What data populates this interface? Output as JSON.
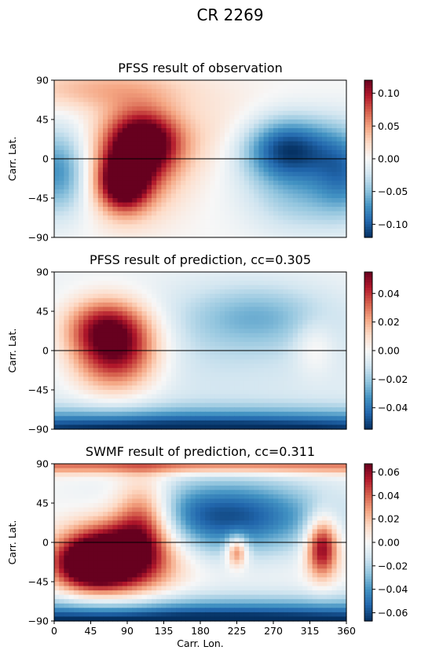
{
  "figure_title": "CR 2269",
  "x_axis_label": "Carr. Lon.",
  "colormap": {
    "name": "RdBu",
    "stops": [
      "#67001f",
      "#b2182b",
      "#d6604d",
      "#f4a582",
      "#fddbc7",
      "#f7f7f7",
      "#d1e5f0",
      "#92c5de",
      "#4393c3",
      "#2166ac",
      "#053061"
    ]
  },
  "chart_data": [
    {
      "type": "heatmap",
      "title": "PFSS result of observation",
      "xlabel": "",
      "ylabel": "Carr. Lat.",
      "xlim": [
        0,
        360
      ],
      "ylim": [
        -90,
        90
      ],
      "x_ticks": [],
      "y_ticks": [
        -90,
        -45,
        0,
        45,
        90
      ],
      "y_tick_labels": [
        "−90",
        "−45",
        "0",
        "45",
        "90"
      ],
      "zero_line": 0,
      "vmin": -0.12,
      "vmax": 0.12,
      "colorbar_ticks": [
        -0.1,
        -0.05,
        0.0,
        0.05,
        0.1
      ],
      "colorbar_tick_labels": [
        "−0.10",
        "−0.05",
        "0.00",
        "0.05",
        "0.10"
      ],
      "field_features": [
        {
          "lon": 110,
          "lat": 20,
          "value": 0.115,
          "width_lon": 30,
          "width_lat": 24
        },
        {
          "lon": 85,
          "lat": -28,
          "value": 0.125,
          "width_lon": 22,
          "width_lat": 22
        },
        {
          "lon": 100,
          "lat": -5,
          "value": 0.07,
          "width_lon": 40,
          "width_lat": 40
        },
        {
          "lon": 285,
          "lat": 12,
          "value": -0.12,
          "width_lon": 42,
          "width_lat": 26
        },
        {
          "lon": 5,
          "lat": -15,
          "value": -0.075,
          "width_lon": 28,
          "width_lat": 35
        },
        {
          "lon": 360,
          "lat": -15,
          "value": -0.07,
          "width_lon": 28,
          "width_lat": 35
        },
        {
          "lon": 300,
          "lat": -45,
          "value": -0.04,
          "width_lon": 45,
          "width_lat": 30
        },
        {
          "lon": 60,
          "lat": 80,
          "value": 0.04,
          "width_lon": 80,
          "width_lat": 18
        },
        {
          "lon": 220,
          "lat": 25,
          "value": 0.025,
          "width_lon": 55,
          "width_lat": 30
        }
      ]
    },
    {
      "type": "heatmap",
      "title": "PFSS result of prediction, cc=0.305",
      "xlabel": "",
      "ylabel": "Carr. Lat.",
      "xlim": [
        0,
        360
      ],
      "ylim": [
        -90,
        90
      ],
      "x_ticks": [],
      "y_ticks": [
        -90,
        -45,
        0,
        45,
        90
      ],
      "y_tick_labels": [
        "−90",
        "−45",
        "0",
        "45",
        "90"
      ],
      "zero_line": 0,
      "vmin": -0.055,
      "vmax": 0.055,
      "colorbar_ticks": [
        -0.04,
        -0.02,
        0.0,
        0.02,
        0.04
      ],
      "colorbar_tick_labels": [
        "−0.04",
        "−0.02",
        "0.00",
        "0.02",
        "0.04"
      ],
      "field_features": [
        {
          "lon": 75,
          "lat": 0,
          "value": 0.06,
          "width_lon": 38,
          "width_lat": 32
        },
        {
          "lon": 60,
          "lat": 30,
          "value": 0.03,
          "width_lon": 35,
          "width_lat": 22
        },
        {
          "lon": 320,
          "lat": 5,
          "value": 0.012,
          "width_lon": 18,
          "width_lat": 22
        },
        {
          "lon": 180,
          "lat": -95,
          "value": -0.06,
          "width_lon": 400,
          "width_lat": 18
        },
        {
          "lon": 250,
          "lat": 40,
          "value": -0.018,
          "width_lon": 60,
          "width_lat": 25
        },
        {
          "lon": 180,
          "lat": 0,
          "value": -0.012,
          "width_lon": 200,
          "width_lat": 60
        }
      ]
    },
    {
      "type": "heatmap",
      "title": "SWMF result of prediction, cc=0.311",
      "xlabel": "Carr. Lon.",
      "ylabel": "Carr. Lat.",
      "xlim": [
        0,
        360
      ],
      "ylim": [
        -90,
        90
      ],
      "x_ticks": [
        0,
        45,
        90,
        135,
        180,
        225,
        270,
        315,
        360
      ],
      "x_tick_labels": [
        "0",
        "45",
        "90",
        "135",
        "180",
        "225",
        "270",
        "315",
        "360"
      ],
      "y_ticks": [
        -90,
        -45,
        0,
        45,
        90
      ],
      "y_tick_labels": [
        "−90",
        "−45",
        "0",
        "45",
        "90"
      ],
      "zero_line": 0,
      "vmin": -0.067,
      "vmax": 0.067,
      "colorbar_ticks": [
        -0.06,
        -0.04,
        -0.02,
        0.0,
        0.02,
        0.04,
        0.06
      ],
      "colorbar_tick_labels": [
        "−0.06",
        "−0.04",
        "−0.02",
        "0.00",
        "0.02",
        "0.04",
        "0.06"
      ],
      "field_features": [
        {
          "lon": 80,
          "lat": -15,
          "value": 0.09,
          "width_lon": 45,
          "width_lat": 30
        },
        {
          "lon": 110,
          "lat": 30,
          "value": 0.05,
          "width_lon": 25,
          "width_lat": 30
        },
        {
          "lon": 40,
          "lat": -25,
          "value": 0.06,
          "width_lon": 30,
          "width_lat": 20
        },
        {
          "lon": 330,
          "lat": -5,
          "value": 0.07,
          "width_lon": 14,
          "width_lat": 24
        },
        {
          "lon": 225,
          "lat": -10,
          "value": 0.05,
          "width_lon": 9,
          "width_lat": 12
        },
        {
          "lon": 180,
          "lat": -100,
          "value": -0.09,
          "width_lon": 400,
          "width_lat": 22
        },
        {
          "lon": 210,
          "lat": 30,
          "value": -0.06,
          "width_lon": 90,
          "width_lat": 30
        },
        {
          "lon": 180,
          "lat": 88,
          "value": 0.04,
          "width_lon": 400,
          "width_lat": 7
        }
      ]
    }
  ]
}
